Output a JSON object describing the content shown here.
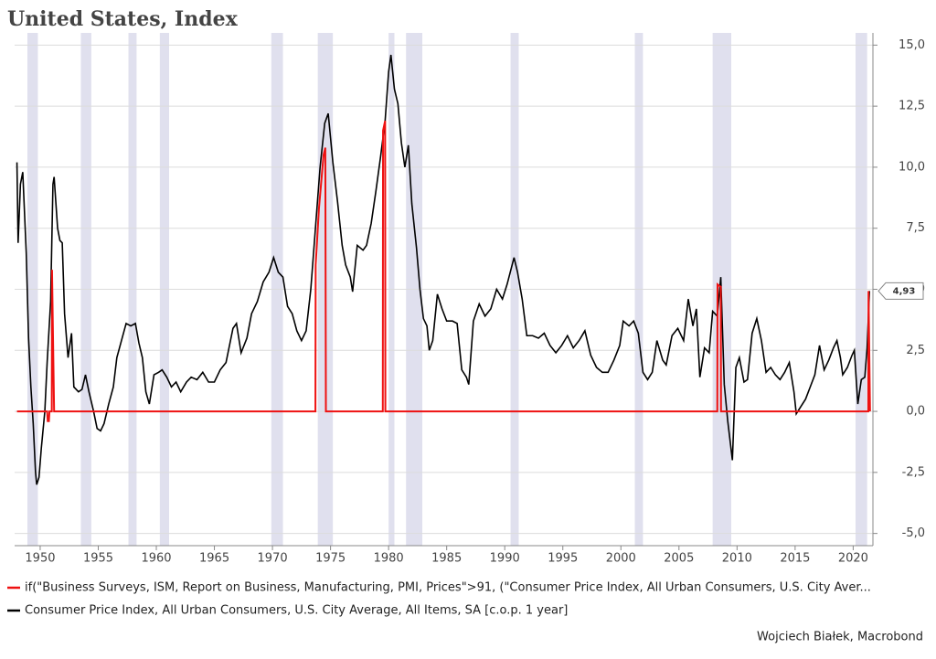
{
  "chart_data": {
    "type": "line",
    "title": "United States, Index",
    "source": "Wojciech Białek, Macrobond",
    "xlim": [
      1947.8,
      2021.7
    ],
    "ylim": [
      -5.5,
      15.5
    ],
    "xticks": [
      1950,
      1955,
      1960,
      1965,
      1970,
      1975,
      1980,
      1985,
      1990,
      1995,
      2000,
      2005,
      2010,
      2015,
      2020
    ],
    "yticks": [
      {
        "value": -5,
        "label": "-5,0"
      },
      {
        "value": -2.5,
        "label": "-2,5"
      },
      {
        "value": 0,
        "label": "0,0"
      },
      {
        "value": 2.5,
        "label": "2,5"
      },
      {
        "value": 5,
        "label": "5,0"
      },
      {
        "value": 7.5,
        "label": "7,5"
      },
      {
        "value": 10,
        "label": "10,0"
      },
      {
        "value": 12.5,
        "label": "12,5"
      },
      {
        "value": 15,
        "label": "15,0"
      }
    ],
    "grid": true,
    "shaded_color": "#e0e0ee",
    "shaded_periods": [
      [
        1948.9,
        1949.8
      ],
      [
        1953.5,
        1954.4
      ],
      [
        1957.6,
        1958.3
      ],
      [
        1960.3,
        1961.1
      ],
      [
        1969.9,
        1970.9
      ],
      [
        1973.9,
        1975.2
      ],
      [
        1980.0,
        1980.5
      ],
      [
        1981.5,
        1982.9
      ],
      [
        1990.5,
        1991.2
      ],
      [
        2001.2,
        2001.9
      ],
      [
        2007.9,
        2009.5
      ],
      [
        2020.2,
        2021.2
      ]
    ],
    "series": [
      {
        "name": "if(\"Business Surveys, ISM, Report on Business, Manufacturing, PMI, Prices\">91, (\"Consumer Price Index, All Urban Consumers, U.S. City Aver...",
        "color": "#ee1111",
        "x": [
          1948.0,
          1950.6,
          1950.65,
          1950.75,
          1950.8,
          1951.0,
          1951.02,
          1951.2,
          1973.7,
          1973.72,
          1974.0,
          1974.4,
          1974.55,
          1974.6,
          1979.5,
          1979.52,
          1979.7,
          1979.72,
          2008.3,
          2008.32,
          2008.6,
          2008.62,
          2021.3,
          2021.32,
          2021.45
        ],
        "values": [
          0,
          0,
          -0.4,
          -0.4,
          0,
          0,
          5.8,
          0,
          0,
          6.0,
          8.3,
          10.5,
          10.8,
          0,
          0,
          11.5,
          11.9,
          0,
          0,
          5.2,
          5.1,
          0,
          0,
          4.93,
          0
        ]
      },
      {
        "name": "Consumer Price Index, All Urban Consumers, U.S. City Average, All Items, SA [c.o.p. 1 year]",
        "color": "#000000",
        "x": [
          1948.0,
          1948.1,
          1948.3,
          1948.5,
          1948.8,
          1949.0,
          1949.2,
          1949.4,
          1949.6,
          1949.7,
          1949.9,
          1950.1,
          1950.4,
          1950.6,
          1950.9,
          1951.1,
          1951.2,
          1951.5,
          1951.7,
          1951.9,
          1952.1,
          1952.4,
          1952.7,
          1952.9,
          1953.3,
          1953.6,
          1953.9,
          1954.2,
          1954.6,
          1954.9,
          1955.2,
          1955.5,
          1955.9,
          1956.3,
          1956.6,
          1957.0,
          1957.4,
          1957.8,
          1958.2,
          1958.5,
          1958.8,
          1959.1,
          1959.4,
          1959.8,
          1960.2,
          1960.5,
          1960.9,
          1961.3,
          1961.7,
          1962.1,
          1962.6,
          1963.0,
          1963.5,
          1964.0,
          1964.5,
          1965.0,
          1965.5,
          1966.0,
          1966.6,
          1966.9,
          1967.3,
          1967.8,
          1968.2,
          1968.7,
          1969.2,
          1969.7,
          1970.1,
          1970.5,
          1970.9,
          1971.3,
          1971.7,
          1972.1,
          1972.5,
          1972.9,
          1973.3,
          1973.7,
          1974.1,
          1974.5,
          1974.8,
          1975.2,
          1975.6,
          1976.0,
          1976.3,
          1976.7,
          1976.9,
          1977.3,
          1977.8,
          1978.1,
          1978.5,
          1978.9,
          1979.3,
          1979.7,
          1980.0,
          1980.2,
          1980.5,
          1980.8,
          1981.1,
          1981.4,
          1981.7,
          1982.0,
          1982.4,
          1982.7,
          1983.0,
          1983.3,
          1983.5,
          1983.8,
          1984.2,
          1984.6,
          1985.0,
          1985.5,
          1985.9,
          1986.3,
          1986.7,
          1986.9,
          1987.3,
          1987.8,
          1988.3,
          1988.8,
          1989.3,
          1989.8,
          1990.2,
          1990.8,
          1991.1,
          1991.5,
          1991.9,
          1992.4,
          1992.9,
          1993.4,
          1993.9,
          1994.4,
          1994.9,
          1995.4,
          1995.9,
          1996.4,
          1996.9,
          1997.4,
          1997.9,
          1998.4,
          1998.9,
          1999.4,
          1999.9,
          2000.2,
          2000.7,
          2001.1,
          2001.5,
          2001.9,
          2002.3,
          2002.7,
          2003.1,
          2003.6,
          2003.9,
          2004.4,
          2004.9,
          2005.4,
          2005.8,
          2006.2,
          2006.5,
          2006.8,
          2007.2,
          2007.6,
          2007.9,
          2008.3,
          2008.6,
          2008.9,
          2009.2,
          2009.6,
          2009.9,
          2010.2,
          2010.6,
          2010.9,
          2011.3,
          2011.7,
          2012.1,
          2012.5,
          2012.9,
          2013.3,
          2013.7,
          2014.1,
          2014.5,
          2014.9,
          2015.1,
          2015.5,
          2015.9,
          2016.3,
          2016.7,
          2017.1,
          2017.5,
          2017.9,
          2018.3,
          2018.6,
          2018.9,
          2019.1,
          2019.5,
          2019.9,
          2020.1,
          2020.4,
          2020.7,
          2021.0,
          2021.2,
          2021.4
        ],
        "values": [
          10.2,
          6.9,
          9.3,
          9.8,
          6.5,
          3.0,
          1.0,
          -0.5,
          -2.5,
          -3.0,
          -2.7,
          -1.5,
          0.0,
          2.0,
          4.5,
          9.3,
          9.6,
          7.5,
          7.0,
          6.9,
          4.0,
          2.2,
          3.2,
          1.0,
          0.8,
          0.9,
          1.5,
          0.8,
          0.0,
          -0.7,
          -0.8,
          -0.5,
          0.3,
          1.0,
          2.2,
          2.9,
          3.6,
          3.5,
          3.6,
          2.8,
          2.2,
          0.8,
          0.3,
          1.5,
          1.6,
          1.7,
          1.4,
          1.0,
          1.2,
          0.8,
          1.2,
          1.4,
          1.3,
          1.6,
          1.2,
          1.2,
          1.7,
          2.0,
          3.4,
          3.6,
          2.4,
          3.0,
          4.0,
          4.5,
          5.3,
          5.7,
          6.3,
          5.7,
          5.5,
          4.3,
          4.0,
          3.3,
          2.9,
          3.3,
          5.0,
          7.5,
          10.0,
          11.8,
          12.2,
          10.2,
          8.6,
          6.8,
          6.0,
          5.5,
          4.9,
          6.8,
          6.6,
          6.8,
          7.7,
          9.0,
          10.4,
          11.9,
          13.9,
          14.6,
          13.2,
          12.6,
          11.0,
          10.0,
          10.9,
          8.5,
          6.7,
          5.0,
          3.8,
          3.5,
          2.5,
          2.9,
          4.8,
          4.2,
          3.7,
          3.7,
          3.6,
          1.7,
          1.4,
          1.1,
          3.7,
          4.4,
          3.9,
          4.2,
          5.0,
          4.6,
          5.2,
          6.3,
          5.7,
          4.6,
          3.1,
          3.1,
          3.0,
          3.2,
          2.7,
          2.4,
          2.7,
          3.1,
          2.6,
          2.9,
          3.3,
          2.3,
          1.8,
          1.6,
          1.6,
          2.1,
          2.7,
          3.7,
          3.5,
          3.7,
          3.2,
          1.6,
          1.3,
          1.6,
          2.9,
          2.1,
          1.9,
          3.1,
          3.4,
          2.9,
          4.6,
          3.5,
          4.2,
          1.4,
          2.6,
          2.4,
          4.1,
          3.9,
          5.5,
          1.1,
          -0.4,
          -2.0,
          1.8,
          2.2,
          1.2,
          1.3,
          3.2,
          3.8,
          2.9,
          1.6,
          1.8,
          1.5,
          1.3,
          1.6,
          2.0,
          0.8,
          -0.1,
          0.2,
          0.5,
          1.0,
          1.5,
          2.7,
          1.7,
          2.1,
          2.6,
          2.9,
          2.2,
          1.5,
          1.8,
          2.3,
          2.5,
          0.3,
          1.3,
          1.4,
          2.6,
          4.93
        ],
        "value_labels": {
          "last": "4,93"
        }
      }
    ]
  }
}
